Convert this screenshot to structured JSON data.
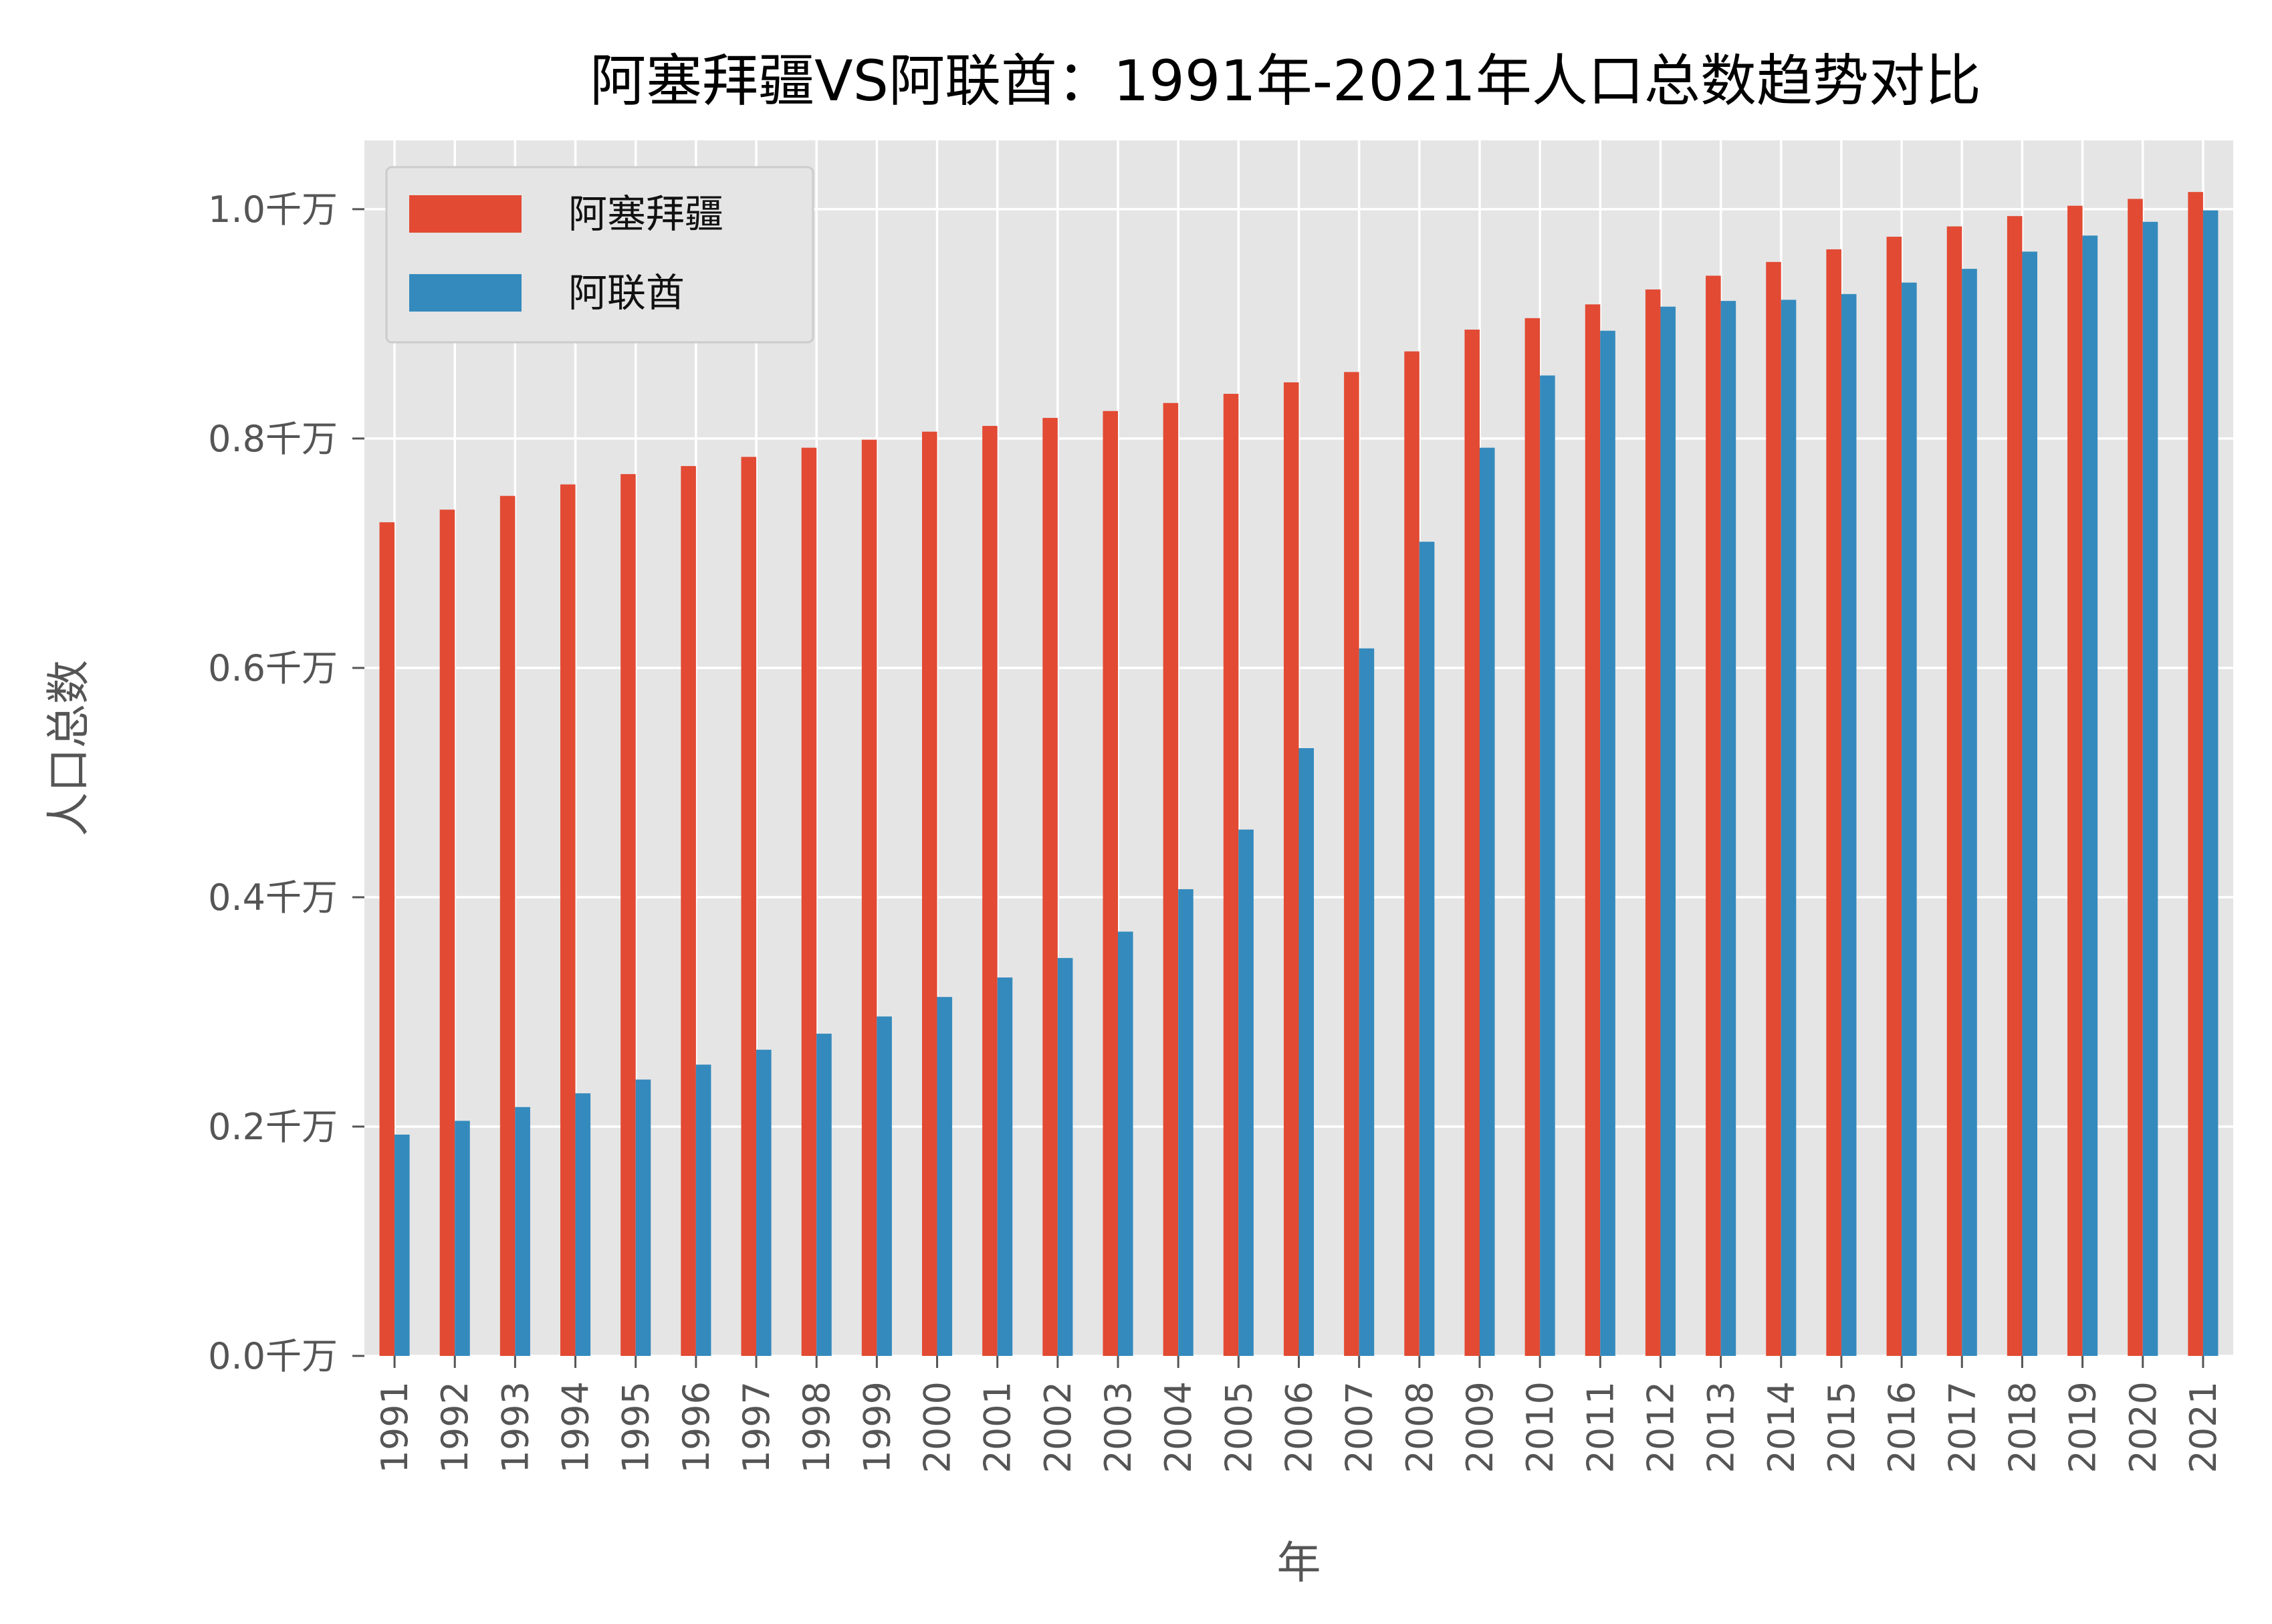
{
  "chart_data": {
    "type": "bar",
    "title": "阿塞拜疆VS阿联酋：1991年-2021年人口总数趋势对比",
    "xlabel": "年",
    "ylabel": "人口总数",
    "y_unit_suffix": "千万",
    "ylim": [
      0,
      1.06
    ],
    "yticks": [
      0.0,
      0.2,
      0.4,
      0.6,
      0.8,
      1.0
    ],
    "ytick_labels": [
      "0.0千万",
      "0.2千万",
      "0.4千万",
      "0.6千万",
      "0.8千万",
      "1.0千万"
    ],
    "grid": true,
    "legend_position": "top-left",
    "categories": [
      "1991",
      "1992",
      "1993",
      "1994",
      "1995",
      "1996",
      "1997",
      "1998",
      "1999",
      "2000",
      "2001",
      "2002",
      "2003",
      "2004",
      "2005",
      "2006",
      "2007",
      "2008",
      "2009",
      "2010",
      "2011",
      "2012",
      "2013",
      "2014",
      "2015",
      "2016",
      "2017",
      "2018",
      "2019",
      "2020",
      "2021"
    ],
    "series": [
      {
        "name": "阿塞拜疆",
        "color": "#E24A33",
        "values": [
          0.727,
          0.738,
          0.75,
          0.76,
          0.769,
          0.776,
          0.784,
          0.792,
          0.799,
          0.806,
          0.811,
          0.818,
          0.824,
          0.831,
          0.839,
          0.849,
          0.858,
          0.876,
          0.895,
          0.905,
          0.917,
          0.93,
          0.942,
          0.954,
          0.965,
          0.976,
          0.985,
          0.994,
          1.003,
          1.009,
          1.015
        ]
      },
      {
        "name": "阿联酋",
        "color": "#348ABD",
        "values": [
          0.193,
          0.205,
          0.217,
          0.229,
          0.241,
          0.254,
          0.267,
          0.281,
          0.296,
          0.313,
          0.33,
          0.347,
          0.37,
          0.407,
          0.459,
          0.53,
          0.617,
          0.71,
          0.792,
          0.855,
          0.894,
          0.915,
          0.92,
          0.921,
          0.926,
          0.936,
          0.948,
          0.963,
          0.977,
          0.989,
          0.999
        ]
      }
    ]
  }
}
